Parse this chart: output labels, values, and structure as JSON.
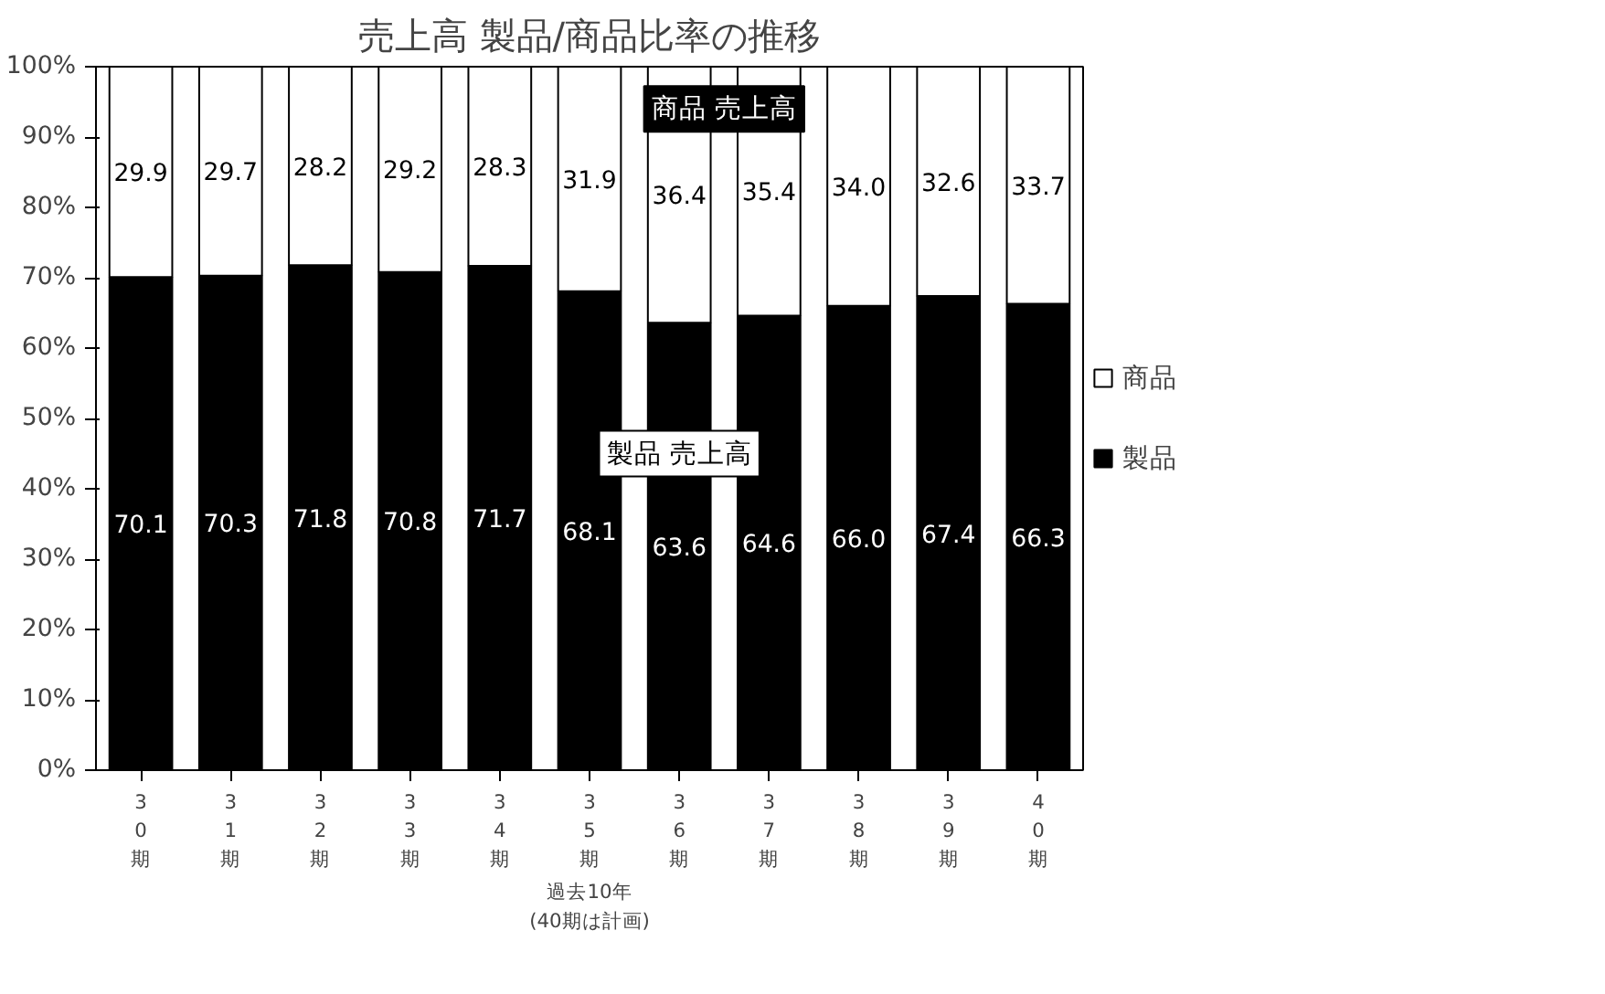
{
  "chart_data": {
    "type": "bar",
    "title": "売上高 製品/商品比率の推移",
    "xlabel": "過去10年\n(40期は計画)",
    "stacked": true,
    "categories": [
      "30期",
      "31期",
      "32期",
      "33期",
      "34期",
      "35期",
      "36期",
      "37期",
      "38期",
      "39期",
      "40期"
    ],
    "series": [
      {
        "name": "製品",
        "color": "#000000",
        "values": [
          70.1,
          70.3,
          71.8,
          70.8,
          71.7,
          68.1,
          63.6,
          64.6,
          66.0,
          67.4,
          66.3
        ],
        "value_labels": [
          "70.1",
          "70.3",
          "71.8",
          "70.8",
          "71.7",
          "68.1",
          "63.6",
          "64.6",
          "66.0",
          "67.4",
          "66.3"
        ]
      },
      {
        "name": "商品",
        "color": "#ffffff",
        "values": [
          29.9,
          29.7,
          28.2,
          29.2,
          28.3,
          31.9,
          36.4,
          35.4,
          34.0,
          32.6,
          33.7
        ],
        "value_labels": [
          "29.9",
          "29.7",
          "28.2",
          "29.2",
          "28.3",
          "31.9",
          "36.4",
          "35.4",
          "34.0",
          "32.6",
          "33.7"
        ]
      }
    ],
    "ylim": [
      0,
      100
    ],
    "yticks": [
      {
        "value": 0,
        "label": "0%"
      },
      {
        "value": 10,
        "label": "10%"
      },
      {
        "value": 20,
        "label": "20%"
      },
      {
        "value": 30,
        "label": "30%"
      },
      {
        "value": 40,
        "label": "40%"
      },
      {
        "value": 50,
        "label": "50%"
      },
      {
        "value": 60,
        "label": "60%"
      },
      {
        "value": 70,
        "label": "70%"
      },
      {
        "value": 80,
        "label": "80%"
      },
      {
        "value": 90,
        "label": "90%"
      },
      {
        "value": 100,
        "label": "100%"
      }
    ],
    "annotations": [
      "商品 売上高",
      "製品 売上高"
    ],
    "legend": "right",
    "grid": false
  }
}
